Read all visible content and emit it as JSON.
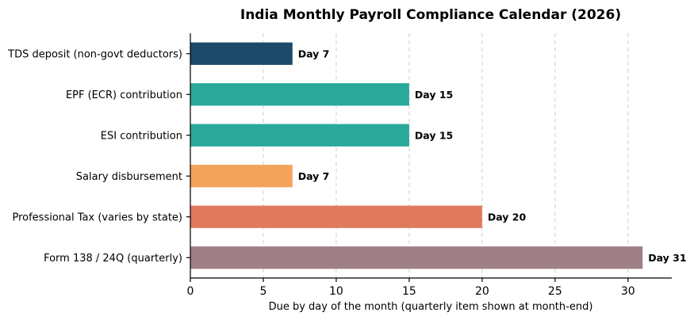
{
  "chart_data": {
    "type": "bar",
    "orientation": "horizontal",
    "title": "India Monthly Payroll Compliance Calendar (2026)",
    "xlabel": "Due by day of the month (quarterly item shown at month-end)",
    "ylabel": "",
    "xlim": [
      0,
      33
    ],
    "xticks": [
      0,
      5,
      10,
      15,
      20,
      25,
      30
    ],
    "grid": "x-dashed",
    "categories": [
      "TDS deposit (non-govt deductors)",
      "EPF (ECR) contribution",
      "ESI contribution",
      "Salary disbursement",
      "Professional Tax (varies by state)",
      "Form 138 / 24Q (quarterly)"
    ],
    "values": [
      7,
      15,
      15,
      7,
      20,
      31
    ],
    "data_labels": [
      "Day 7",
      "Day 15",
      "Day 15",
      "Day 7",
      "Day 20",
      "Day 31"
    ],
    "colors": [
      "#1b4a6b",
      "#2aa99b",
      "#2aa99b",
      "#f4a35a",
      "#e07a5f",
      "#9e8086"
    ]
  }
}
